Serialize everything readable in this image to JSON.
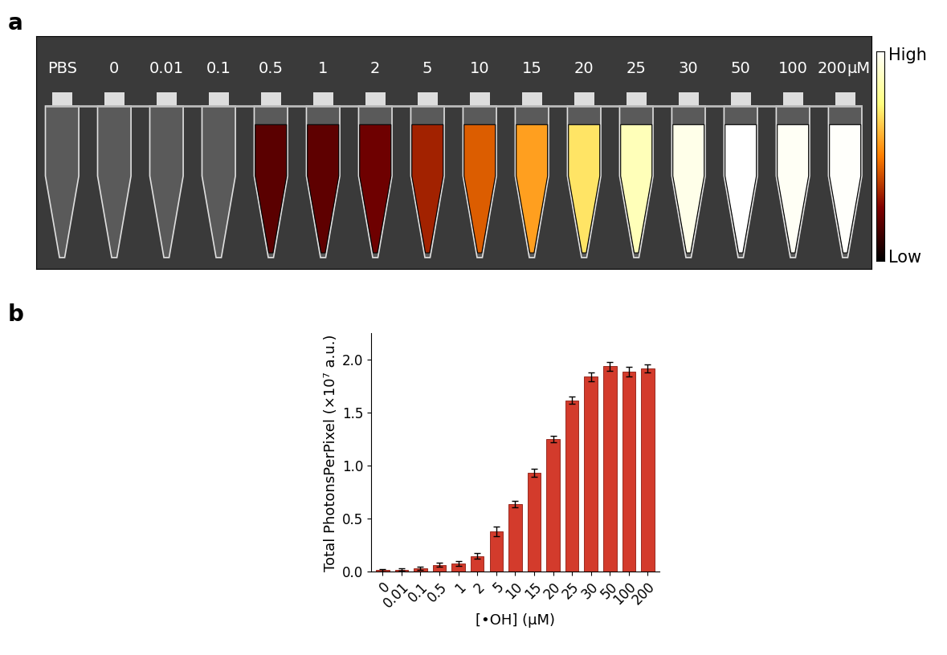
{
  "image_panel": {
    "label": "a",
    "tube_labels": [
      "PBS",
      "0",
      "0.01",
      "0.1",
      "0.5",
      "1",
      "2",
      "5",
      "10",
      "15",
      "20",
      "25",
      "30",
      "50",
      "100",
      "200"
    ],
    "unit": "μM",
    "colorbar": {
      "high": "High",
      "low": "Low"
    }
  },
  "chart_data": {
    "panel_label": "b",
    "type": "bar",
    "categories": [
      "0",
      "0.01",
      "0.1",
      "0.5",
      "1",
      "2",
      "5",
      "10",
      "15",
      "20",
      "25",
      "30",
      "50",
      "100",
      "200"
    ],
    "values": [
      0.015,
      0.02,
      0.03,
      0.065,
      0.08,
      0.15,
      0.38,
      0.64,
      0.935,
      1.25,
      1.62,
      1.84,
      1.94,
      1.89,
      1.92
    ],
    "errors": [
      0.01,
      0.01,
      0.015,
      0.02,
      0.025,
      0.025,
      0.045,
      0.03,
      0.035,
      0.03,
      0.035,
      0.04,
      0.04,
      0.045,
      0.04
    ],
    "color": "#d33b2c",
    "x_label": "[•OH] (μM)",
    "y_label": "Total PhotonsPerPixel (×10⁷ a.u.)",
    "ylim": [
      0,
      2.25
    ],
    "yticks": [
      {
        "value": 0,
        "label": "0.0"
      },
      0.5,
      {
        "value": 1,
        "label": "1.0"
      },
      1.5,
      {
        "value": 2,
        "label": "2.0"
      }
    ]
  }
}
